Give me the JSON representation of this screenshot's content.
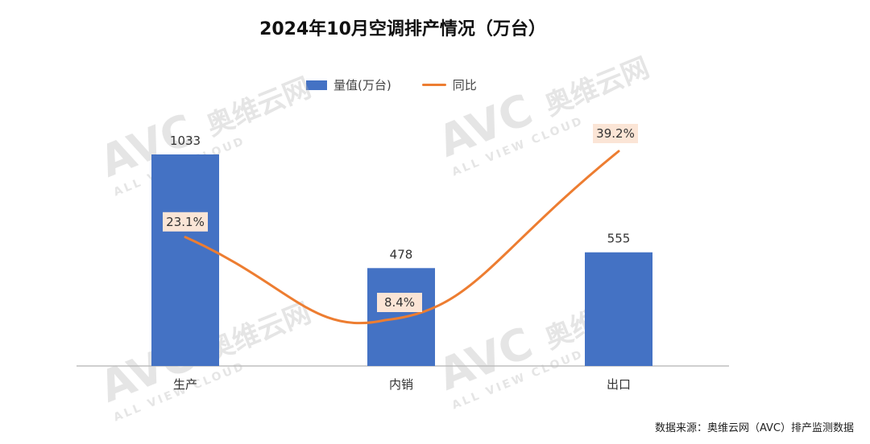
{
  "chart_data": {
    "type": "bar",
    "title": "2024年10月空调排产情况（万台）",
    "categories": [
      "生产",
      "内销",
      "出口"
    ],
    "series": [
      {
        "name": "量值(万台)",
        "type": "bar",
        "values": [
          1033,
          478,
          555
        ]
      },
      {
        "name": "同比",
        "type": "line",
        "values": [
          23.1,
          8.4,
          39.2
        ],
        "labels": [
          "23.1%",
          "8.4%",
          "39.2%"
        ]
      }
    ],
    "xlabel": "",
    "ylabel": "",
    "grid": false,
    "legend_position": "top",
    "colors": {
      "bar": "#4472C4",
      "line": "#ED7D31",
      "label_bg": "#FBE5D6"
    }
  },
  "watermark": {
    "brand": "AVC",
    "brand_cn": "奥维云网",
    "tagline": "ALL VIEW CLOUD"
  },
  "source": "数据来源：奥维云网（AVC）排产监测数据"
}
